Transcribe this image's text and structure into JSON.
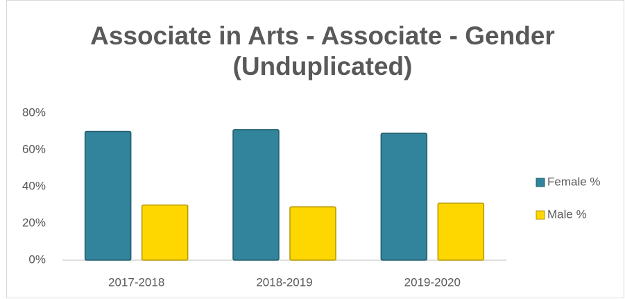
{
  "chart_data": {
    "type": "bar",
    "title": "Associate in Arts - Associate - Gender (Unduplicated)",
    "categories": [
      "2017-2018",
      "2018-2019",
      "2019-2020"
    ],
    "series": [
      {
        "name": "Female %",
        "color": "#31849b",
        "values": [
          70,
          71,
          69
        ]
      },
      {
        "name": "Male %",
        "color": "#ffd700",
        "values": [
          30,
          29,
          31
        ]
      }
    ],
    "ylim": [
      0,
      80
    ],
    "yticks": [
      {
        "value": 0,
        "label": "0%"
      },
      {
        "value": 20,
        "label": "20%"
      },
      {
        "value": 40,
        "label": "40%"
      },
      {
        "value": 60,
        "label": "60%"
      },
      {
        "value": 80,
        "label": "80%"
      }
    ],
    "grid": false,
    "legend": "right"
  }
}
